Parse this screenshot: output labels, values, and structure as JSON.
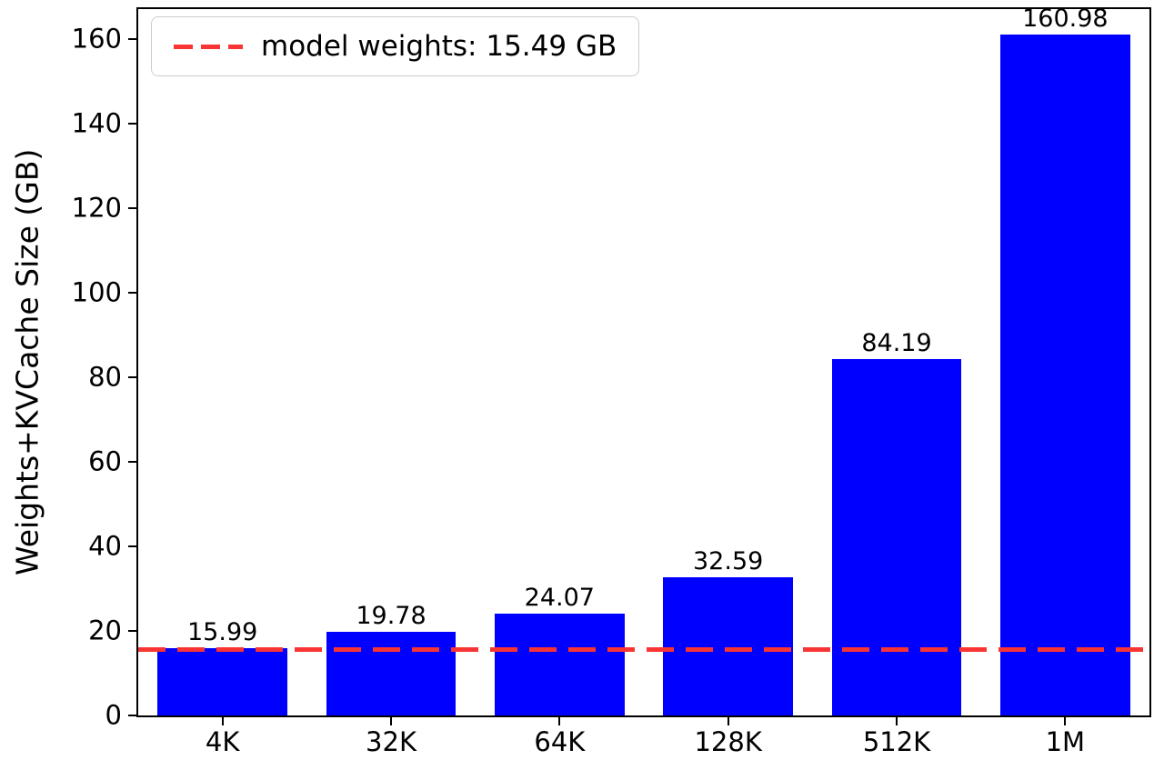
{
  "chart_data": {
    "type": "bar",
    "title": "",
    "xlabel": "",
    "ylabel": "Weights+KVCache Size (GB)",
    "categories": [
      "4K",
      "32K",
      "64K",
      "128K",
      "512K",
      "1M"
    ],
    "values": [
      15.99,
      19.78,
      24.07,
      32.59,
      84.19,
      160.98
    ],
    "bar_labels": [
      "15.99",
      "19.78",
      "24.07",
      "32.59",
      "84.19",
      "160.98"
    ],
    "bar_color": "#0000ff",
    "ylim": [
      0,
      167
    ],
    "yticks": [
      0,
      20,
      40,
      60,
      80,
      100,
      120,
      140,
      160
    ],
    "grid": false,
    "legend_position": "upper left",
    "reference_line": {
      "value": 15.49,
      "label": "model weights: 15.49 GB",
      "color": "#f83434",
      "style": "dashed"
    }
  }
}
